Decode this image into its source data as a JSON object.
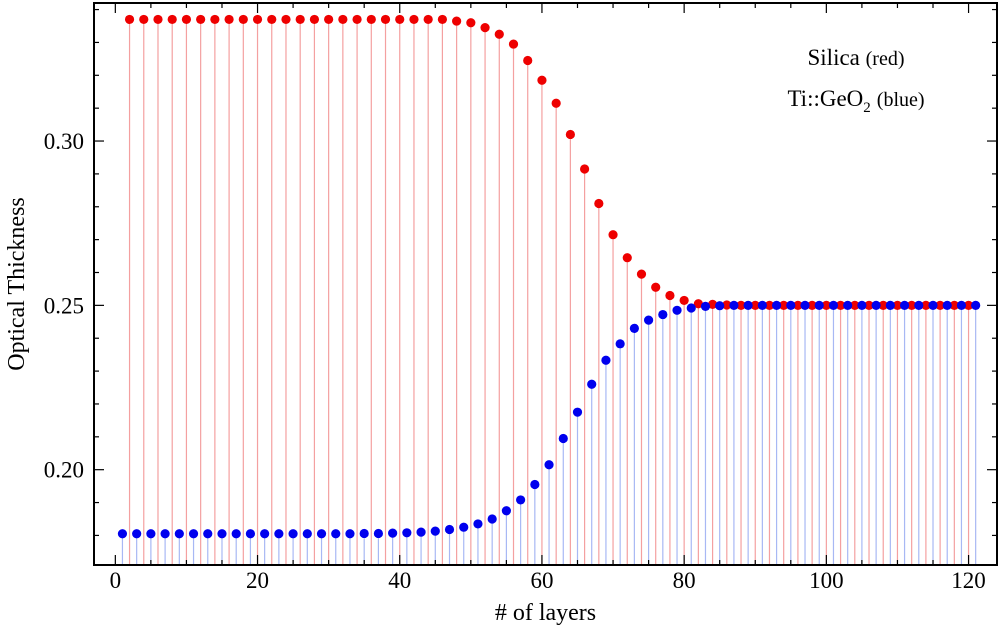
{
  "chart_data": {
    "type": "scatter",
    "style": "stem",
    "title": "",
    "xlabel": "# of layers",
    "ylabel": "Optical Thickness",
    "xlim": [
      -3,
      124
    ],
    "ylim": [
      0.171,
      0.342
    ],
    "stem_baseline": 0.171,
    "grid": false,
    "x_ticks": [
      0,
      20,
      40,
      60,
      80,
      100,
      120
    ],
    "x_tick_labels": [
      "0",
      "20",
      "40",
      "60",
      "80",
      "100",
      "120"
    ],
    "y_ticks": [
      0.2,
      0.25,
      0.3
    ],
    "y_tick_labels": [
      "0.20",
      "0.25",
      "0.30"
    ],
    "legend": {
      "position": "top-right",
      "entry1": {
        "name": "Silica",
        "color_word": "(red)"
      },
      "entry2": {
        "prefix": "Ti::GeO",
        "subscript": "2",
        "color_word": "(blue)"
      }
    },
    "series": [
      {
        "name": "Silica",
        "color": "#ee0000",
        "stem_color": "#f4a0a0",
        "x": [
          2,
          4,
          6,
          8,
          10,
          12,
          14,
          16,
          18,
          20,
          22,
          24,
          26,
          28,
          30,
          32,
          34,
          36,
          38,
          40,
          42,
          44,
          46,
          48,
          50,
          52,
          54,
          56,
          58,
          60,
          62,
          64,
          66,
          68,
          70,
          72,
          74,
          76,
          78,
          80,
          82,
          84,
          86,
          88,
          90,
          92,
          94,
          96,
          98,
          100,
          102,
          104,
          106,
          108,
          110,
          112,
          114,
          116,
          118,
          120
        ],
        "values": [
          0.337,
          0.337,
          0.337,
          0.337,
          0.337,
          0.337,
          0.337,
          0.337,
          0.337,
          0.337,
          0.337,
          0.337,
          0.337,
          0.337,
          0.337,
          0.337,
          0.337,
          0.337,
          0.337,
          0.337,
          0.337,
          0.337,
          0.337,
          0.3365,
          0.336,
          0.3345,
          0.3325,
          0.3295,
          0.3245,
          0.3185,
          0.3115,
          0.302,
          0.2915,
          0.281,
          0.2715,
          0.2645,
          0.2595,
          0.2555,
          0.253,
          0.2515,
          0.2505,
          0.2503,
          0.2501,
          0.25,
          0.25,
          0.25,
          0.25,
          0.25,
          0.25,
          0.25,
          0.25,
          0.25,
          0.25,
          0.25,
          0.25,
          0.25,
          0.25,
          0.25,
          0.25,
          0.25
        ]
      },
      {
        "name": "Ti::GeO2",
        "color": "#0000ee",
        "stem_color": "#a8b8f4",
        "x": [
          1,
          3,
          5,
          7,
          9,
          11,
          13,
          15,
          17,
          19,
          21,
          23,
          25,
          27,
          29,
          31,
          33,
          35,
          37,
          39,
          41,
          43,
          45,
          47,
          49,
          51,
          53,
          55,
          57,
          59,
          61,
          63,
          65,
          67,
          69,
          71,
          73,
          75,
          77,
          79,
          81,
          83,
          85,
          87,
          89,
          91,
          93,
          95,
          97,
          99,
          101,
          103,
          105,
          107,
          109,
          111,
          113,
          115,
          117,
          119,
          121
        ],
        "values": [
          0.1805,
          0.1805,
          0.1805,
          0.1805,
          0.1805,
          0.1805,
          0.1805,
          0.1805,
          0.1805,
          0.1805,
          0.1805,
          0.1805,
          0.1805,
          0.1805,
          0.1805,
          0.1805,
          0.1805,
          0.1806,
          0.1806,
          0.1807,
          0.1808,
          0.181,
          0.1813,
          0.1818,
          0.1825,
          0.1835,
          0.185,
          0.1875,
          0.1908,
          0.1955,
          0.2015,
          0.2095,
          0.2175,
          0.226,
          0.2333,
          0.2383,
          0.243,
          0.2455,
          0.2472,
          0.2485,
          0.2492,
          0.2497,
          0.2499,
          0.25,
          0.25,
          0.25,
          0.25,
          0.25,
          0.25,
          0.25,
          0.25,
          0.25,
          0.25,
          0.25,
          0.25,
          0.25,
          0.25,
          0.25,
          0.25,
          0.25,
          0.25
        ]
      }
    ]
  }
}
